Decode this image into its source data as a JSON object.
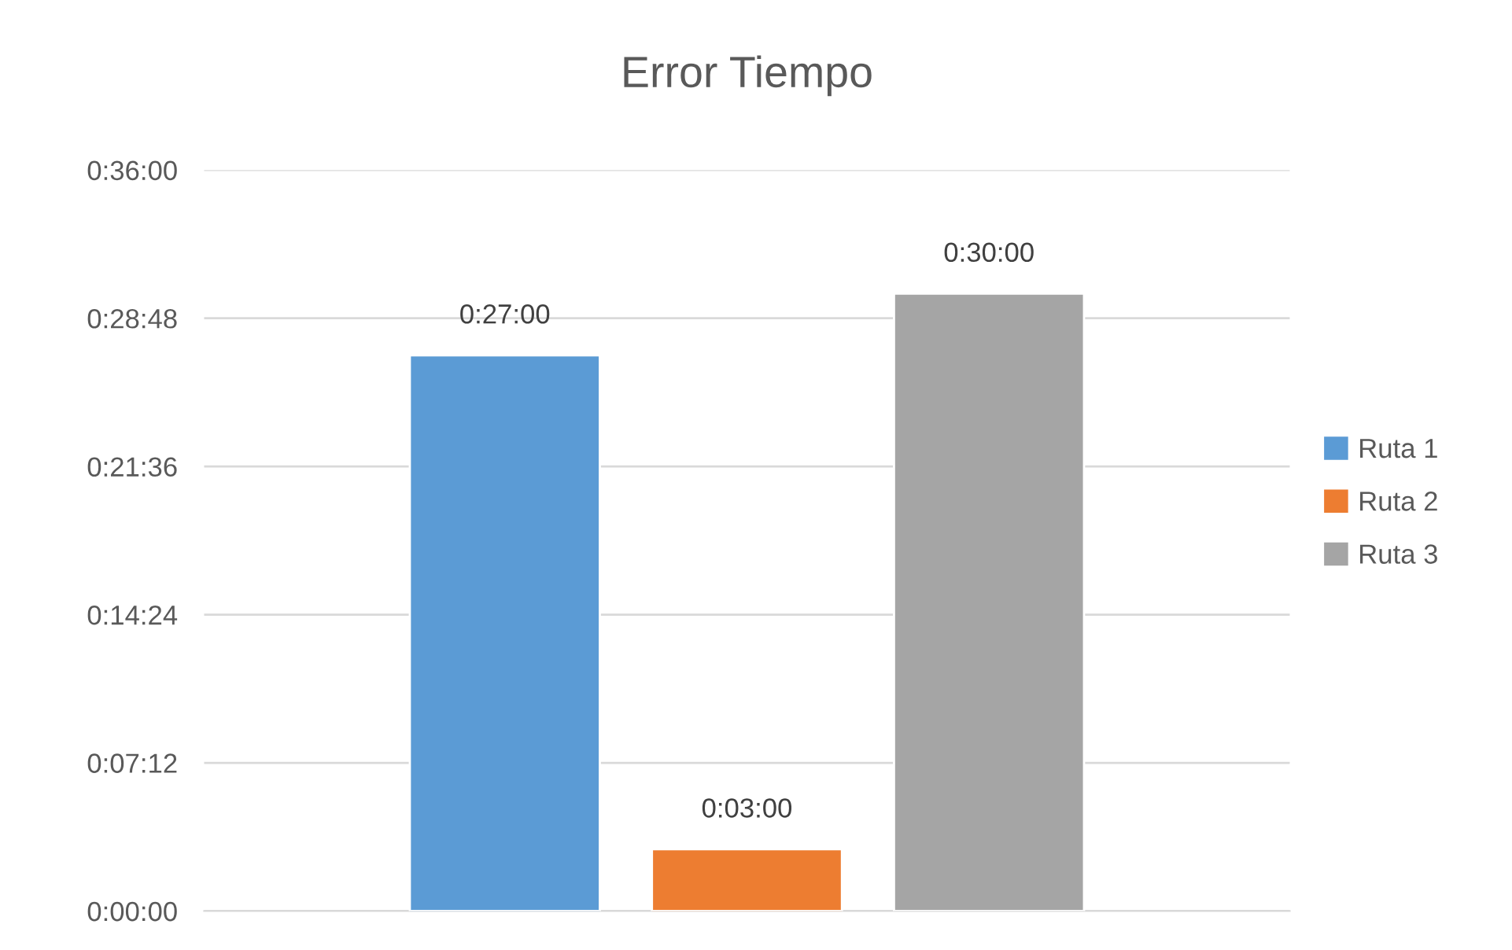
{
  "chart_data": {
    "type": "bar",
    "title": "Error Tiempo",
    "categories": [
      null
    ],
    "series": [
      {
        "name": "Ruta 1",
        "color": "#5b9bd5",
        "values": [
          27
        ],
        "value_labels": [
          "0:27:00"
        ]
      },
      {
        "name": "Ruta 2",
        "color": "#ed7d31",
        "values": [
          3
        ],
        "value_labels": [
          "0:03:00"
        ]
      },
      {
        "name": "Ruta 3",
        "color": "#a5a5a5",
        "values": [
          30
        ],
        "value_labels": [
          "0:30:00"
        ]
      }
    ],
    "ylim": [
      0,
      36
    ],
    "yticks": [
      {
        "value": 0,
        "label": "0:00:00"
      },
      {
        "value": 7.2,
        "label": "0:07:12"
      },
      {
        "value": 14.4,
        "label": "0:14:24"
      },
      {
        "value": 21.6,
        "label": "0:21:36"
      },
      {
        "value": 28.8,
        "label": "0:28:48"
      },
      {
        "value": 36,
        "label": "0:36:00"
      }
    ],
    "grid": "y",
    "legend": "right",
    "tick_labels": "y"
  }
}
